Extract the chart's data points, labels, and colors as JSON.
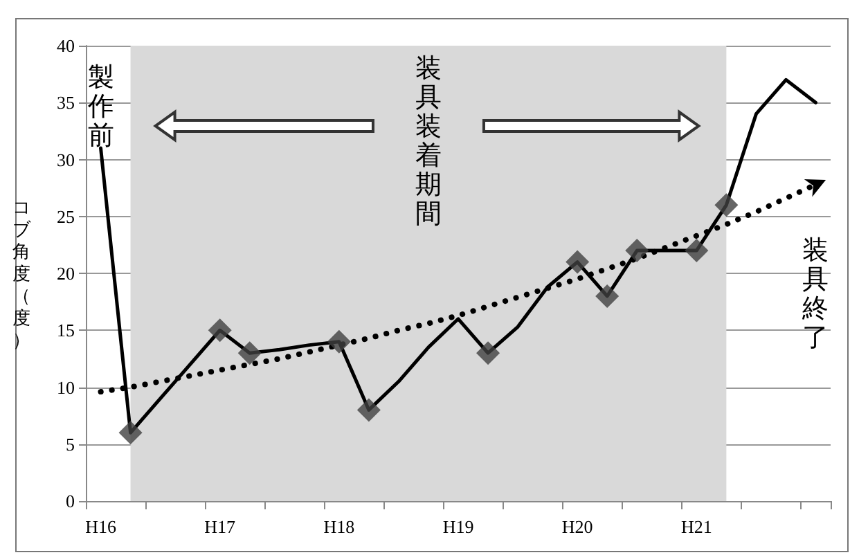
{
  "chart_data": {
    "type": "line",
    "ylabel": "コブ角度（度）",
    "categories": [
      "H16",
      null,
      null,
      null,
      "H17",
      null,
      null,
      null,
      "H18",
      null,
      null,
      null,
      "H19",
      null,
      null,
      null,
      "H20",
      null,
      null,
      null,
      "H21",
      null,
      null,
      null,
      null
    ],
    "ylim": [
      0,
      40
    ],
    "yticks": [
      0,
      5,
      10,
      15,
      20,
      25,
      30,
      35,
      40
    ],
    "grid": "y",
    "series": [
      {
        "color": "#000000",
        "marker": "none",
        "line_style": "solid",
        "values": [
          31,
          6,
          9,
          12,
          15,
          13,
          13.3,
          13.7,
          14,
          8,
          10.5,
          13.5,
          16,
          13,
          15.3,
          18.8,
          21,
          18,
          22,
          22,
          22,
          26,
          34,
          37,
          35
        ]
      },
      {
        "type": "scatter",
        "color": "#404040",
        "marker": "diamond",
        "values": [
          null,
          6,
          null,
          null,
          15,
          13,
          null,
          null,
          14,
          8,
          null,
          null,
          null,
          13,
          null,
          null,
          21,
          18,
          22,
          null,
          22,
          26,
          null,
          null,
          null
        ]
      },
      {
        "color": "#000000",
        "marker": "none",
        "line_style": "dotted",
        "values": [
          9.6,
          10.0,
          10.5,
          11.0,
          11.5,
          12.0,
          12.5,
          13.1,
          13.7,
          14.3,
          15.0,
          15.6,
          16.3,
          17.1,
          17.9,
          18.7,
          19.5,
          20.4,
          21.3,
          22.3,
          23.3,
          24.3,
          25.4,
          26.6,
          27.8
        ]
      }
    ],
    "annotations": [
      "製作前",
      "装具装着期間",
      "装具終了"
    ]
  }
}
